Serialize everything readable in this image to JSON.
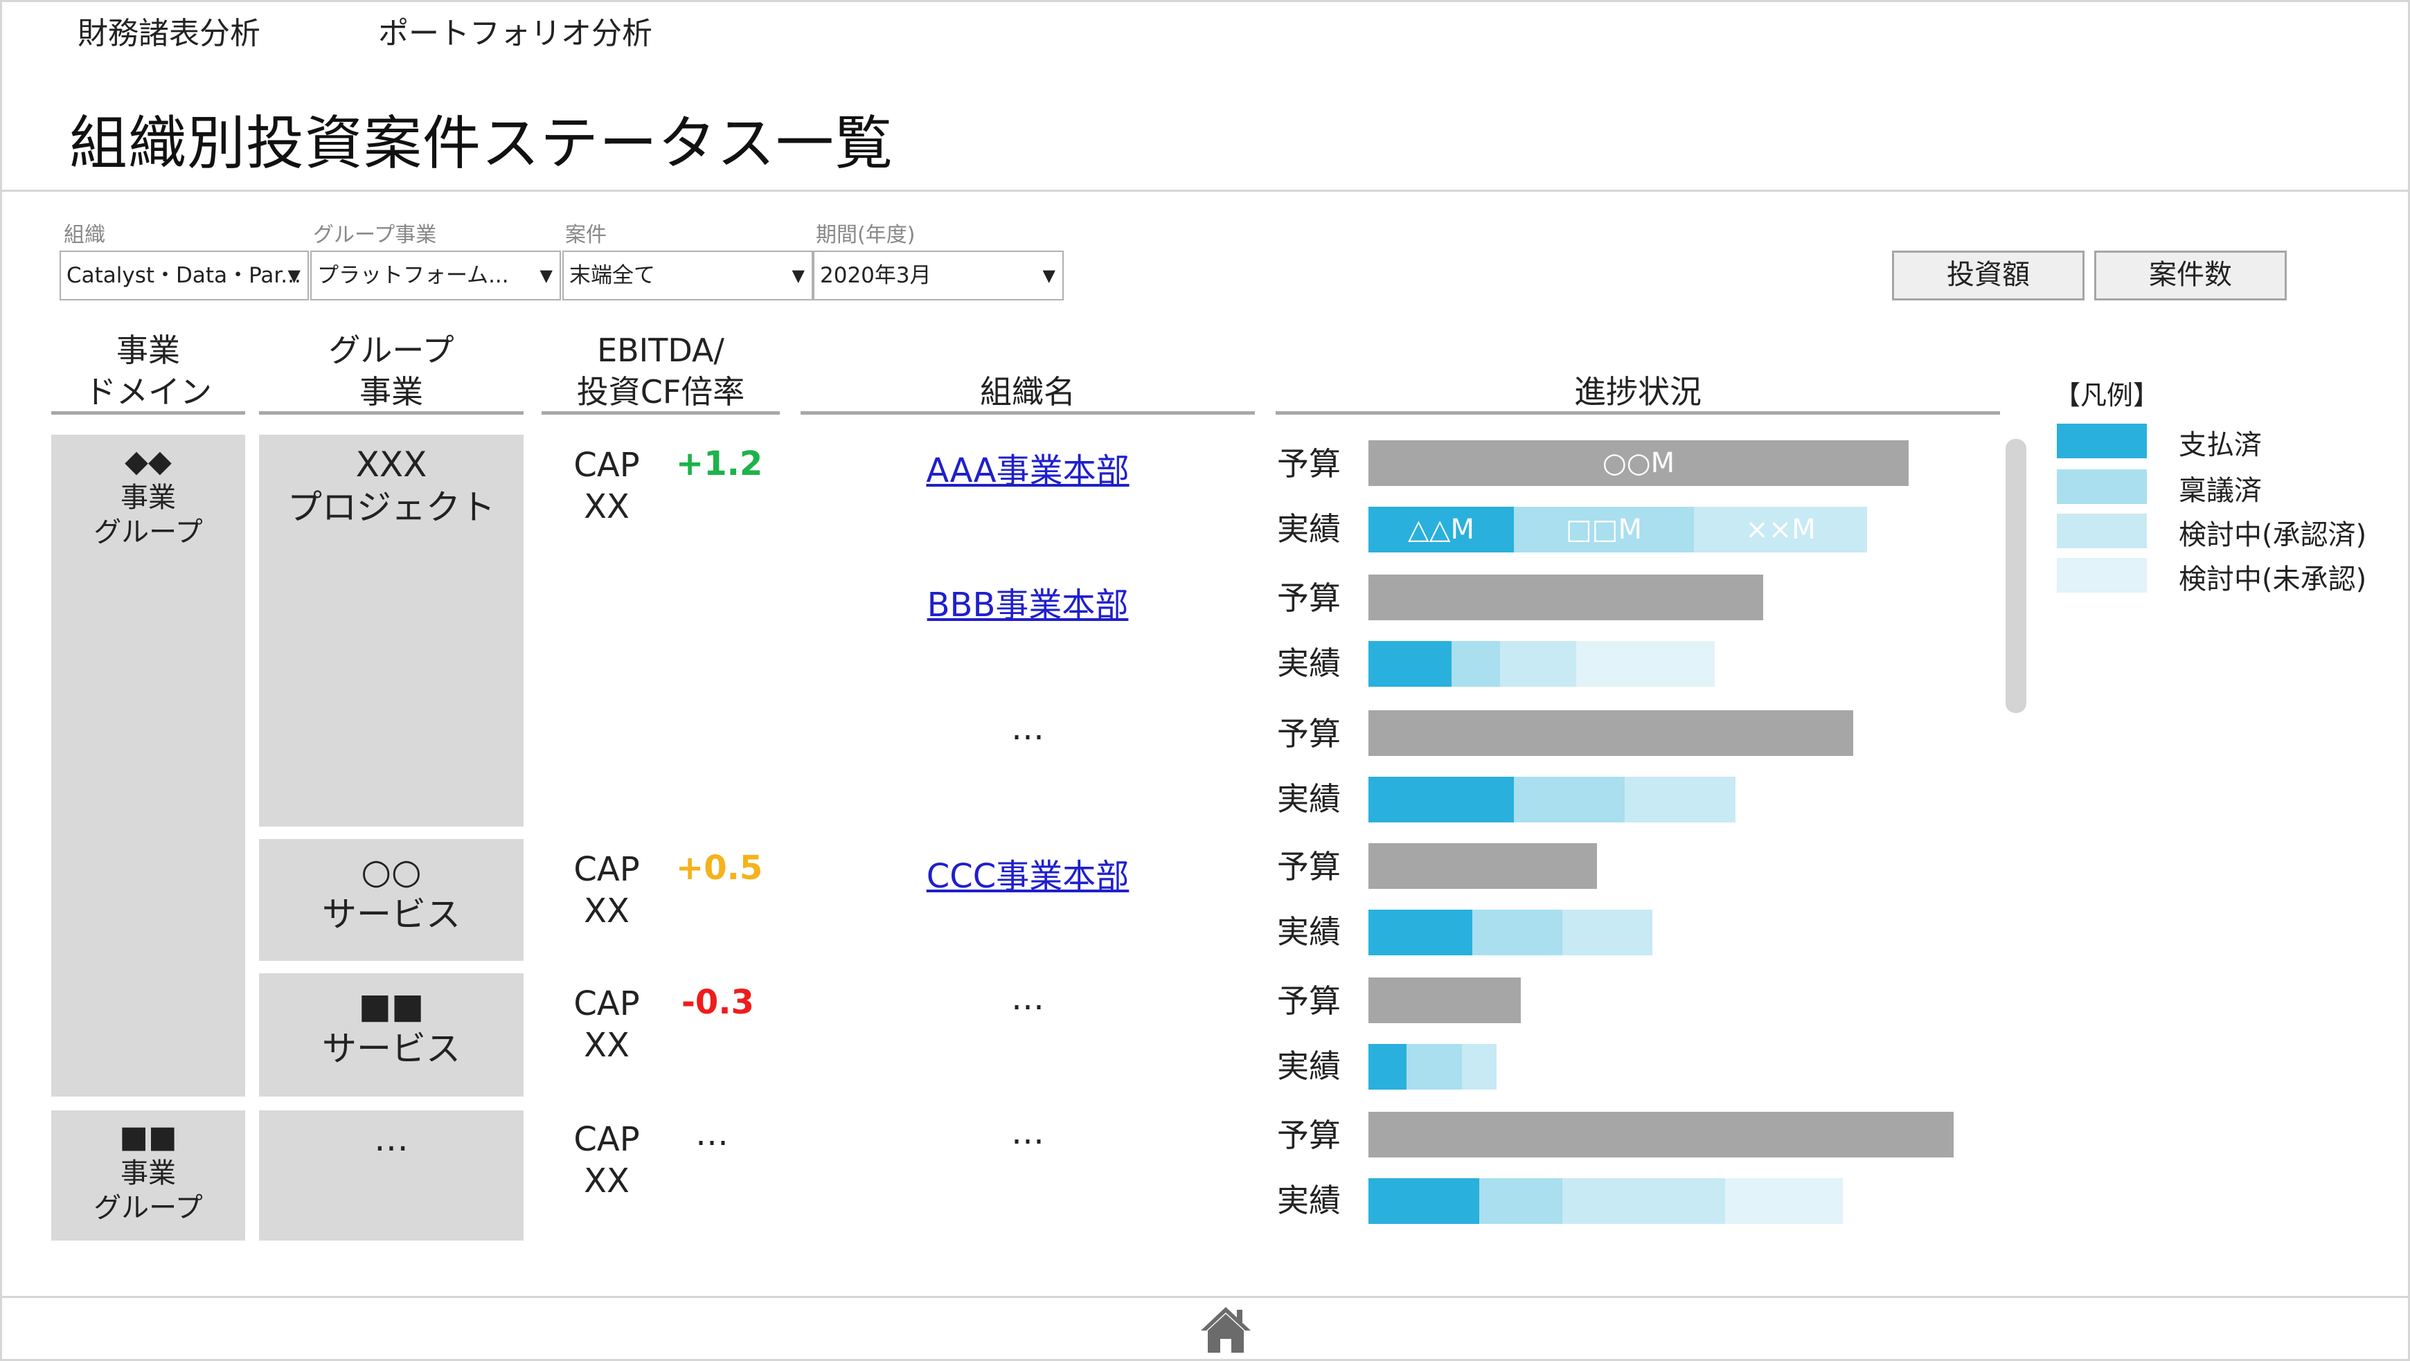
{
  "nav": {
    "tab1": "財務諸表分析",
    "tab2": "ポートフォリオ分析"
  },
  "title": "組織別投資案件ステータス一覧",
  "filters": {
    "org_label": "組織",
    "org_value": "Catalyst・Data・Par...",
    "group_label": "グループ事業",
    "group_value": "プラットフォーム...",
    "case_label": "案件",
    "case_value": "末端全て",
    "period_label": "期間(年度)",
    "period_value": "2020年3月",
    "caret": "▼"
  },
  "buttons": {
    "investment": "投資額",
    "cases": "案件数"
  },
  "columns": {
    "domain_l1": "事業",
    "domain_l2": "ドメイン",
    "group_l1": "グループ",
    "group_l2": "事業",
    "ebitda_l1": "EBITDA/",
    "ebitda_l2": "投資CF倍率",
    "org": "組織名",
    "progress": "進捗状況"
  },
  "domains": [
    {
      "l1": "◆◆",
      "l2": "事業",
      "l3": "グループ"
    },
    {
      "l1": "■■",
      "l2": "事業",
      "l3": "グループ"
    }
  ],
  "groups": [
    {
      "l1": "XXX",
      "l2": "プロジェクト"
    },
    {
      "l1": "○○",
      "l2": "サービス"
    },
    {
      "l1": "■■",
      "l2": "サービス"
    },
    {
      "l1": "…"
    }
  ],
  "metrics": [
    {
      "cap1": "CAP",
      "cap2": "XX",
      "ratio": "+1.2",
      "color": "#1db34a"
    },
    {
      "cap1": "CAP",
      "cap2": "XX",
      "ratio": "+0.5",
      "color": "#f5b21b"
    },
    {
      "cap1": "CAP",
      "cap2": "XX",
      "ratio": "-0.3",
      "color": "#ee1c1c"
    },
    {
      "cap1": "CAP",
      "cap2": "XX",
      "ratio": "…",
      "color": "#222222"
    }
  ],
  "orgs": [
    "AAA事業本部",
    "BBB事業本部",
    "…",
    "CCC事業本部",
    "…",
    "…"
  ],
  "row_labels": {
    "budget": "予算",
    "actual": "実績"
  },
  "progress_rows": [
    {
      "budget": 0.78,
      "budget_label": "○○M",
      "actual": [
        0.21,
        0.26,
        0.25,
        0.0
      ],
      "actual_labels": [
        "△△M",
        "□□M",
        "××M",
        ""
      ]
    },
    {
      "budget": 0.57,
      "budget_label": "",
      "actual": [
        0.12,
        0.07,
        0.11,
        0.2
      ],
      "actual_labels": [
        "",
        "",
        "",
        ""
      ]
    },
    {
      "budget": 0.7,
      "budget_label": "",
      "actual": [
        0.21,
        0.16,
        0.16,
        0.0
      ],
      "actual_labels": [
        "",
        "",
        "",
        ""
      ]
    },
    {
      "budget": 0.33,
      "budget_label": "",
      "actual": [
        0.15,
        0.13,
        0.13,
        0.0
      ],
      "actual_labels": [
        "",
        "",
        "",
        ""
      ]
    },
    {
      "budget": 0.22,
      "budget_label": "",
      "actual": [
        0.055,
        0.08,
        0.05,
        0.0
      ],
      "actual_labels": [
        "",
        "",
        "",
        ""
      ]
    },
    {
      "budget": 0.845,
      "budget_label": "",
      "actual": [
        0.16,
        0.12,
        0.235,
        0.17
      ],
      "actual_labels": [
        "",
        "",
        "",
        ""
      ]
    }
  ],
  "legend": {
    "title": "【凡例】",
    "items": [
      {
        "label": "支払済",
        "color": "#29b0dc"
      },
      {
        "label": "稟議済",
        "color": "#a9dfef"
      },
      {
        "label": "検討中(承認済)",
        "color": "#c8eaf4"
      },
      {
        "label": "検討中(未承認)",
        "color": "#e2f3f9"
      }
    ]
  },
  "budget_color": "#a6a6a6",
  "footer": {
    "home_icon": "home-icon"
  }
}
